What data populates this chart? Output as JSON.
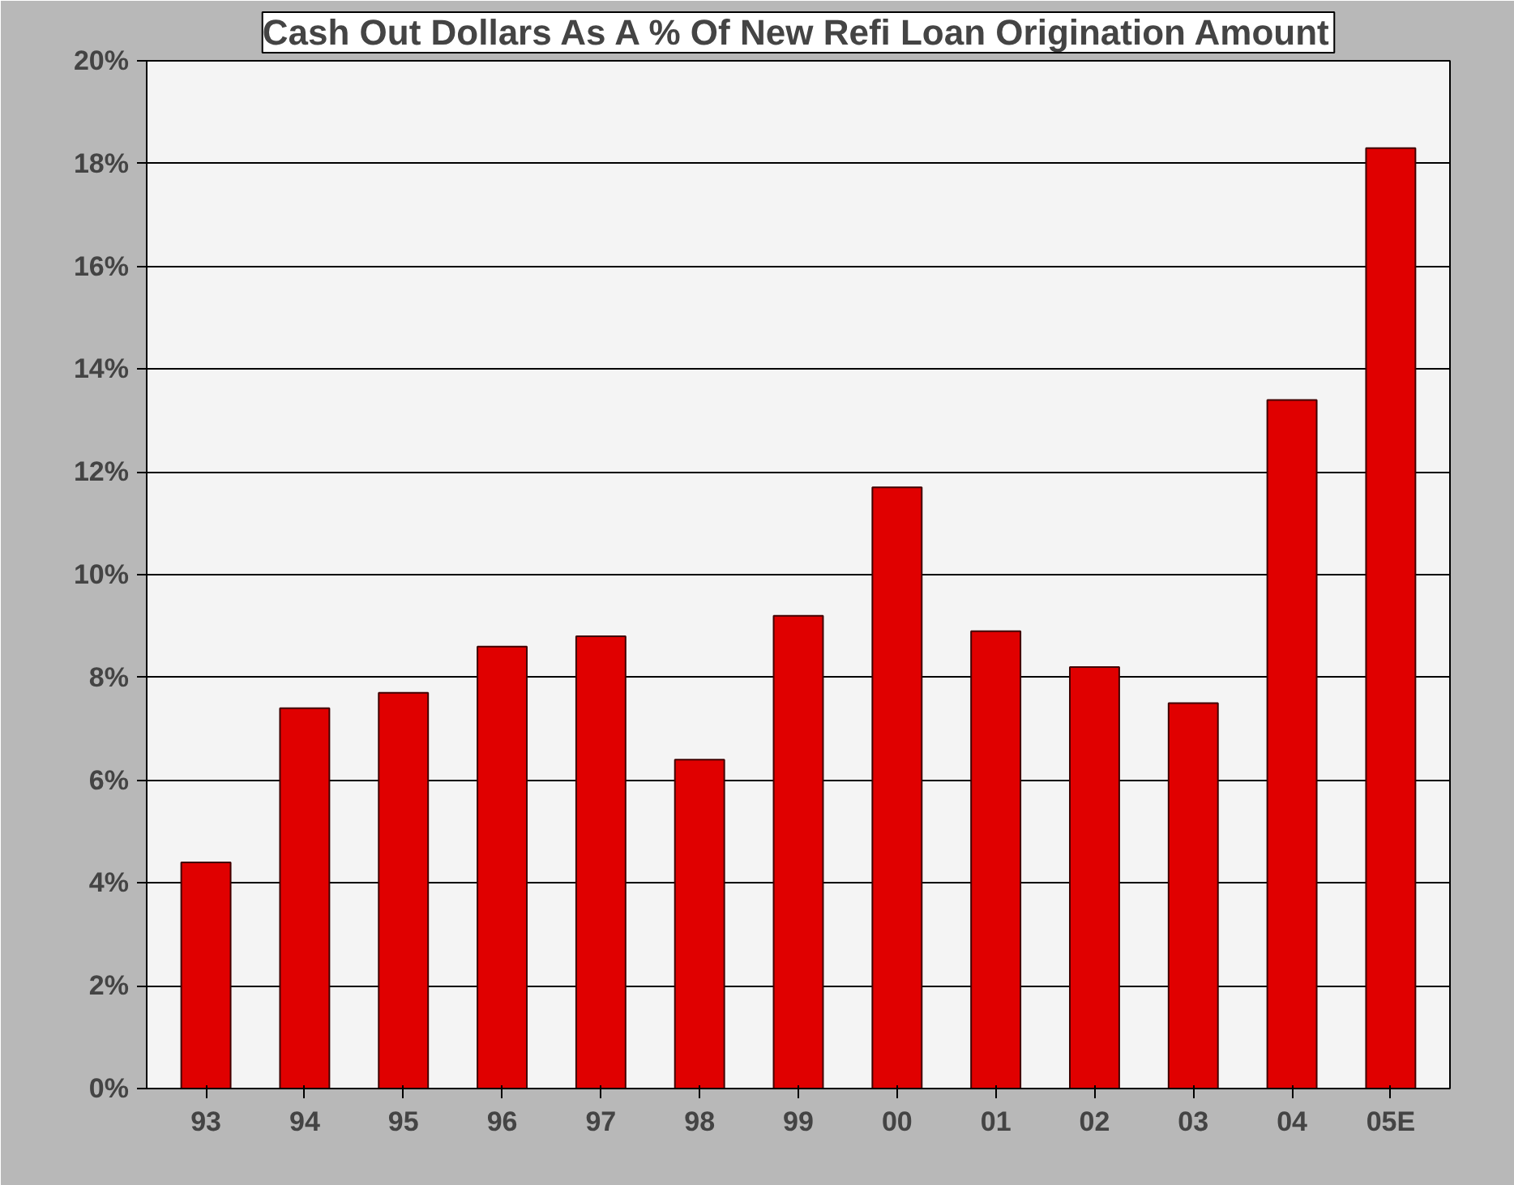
{
  "chart_data": {
    "type": "bar",
    "title": "Cash Out Dollars As A % Of New Refi Loan Origination Amount",
    "categories": [
      "93",
      "94",
      "95",
      "96",
      "97",
      "98",
      "99",
      "00",
      "01",
      "02",
      "03",
      "04",
      "05E"
    ],
    "values": [
      4.4,
      7.4,
      7.7,
      8.6,
      8.8,
      6.4,
      9.2,
      11.7,
      8.9,
      8.2,
      7.5,
      13.4,
      18.3
    ],
    "color": "#e00000",
    "ylim": [
      0,
      20
    ],
    "yticks": [
      {
        "value": 0,
        "label": "0%"
      },
      {
        "value": 2,
        "label": "2%"
      },
      {
        "value": 4,
        "label": "4%"
      },
      {
        "value": 6,
        "label": "6%"
      },
      {
        "value": 8,
        "label": "8%"
      },
      {
        "value": 10,
        "label": "10%"
      },
      {
        "value": 12,
        "label": "12%"
      },
      {
        "value": 14,
        "label": "14%"
      },
      {
        "value": 16,
        "label": "16%"
      },
      {
        "value": 18,
        "label": "18%"
      },
      {
        "value": 20,
        "label": "20%"
      }
    ],
    "grid": "y"
  }
}
